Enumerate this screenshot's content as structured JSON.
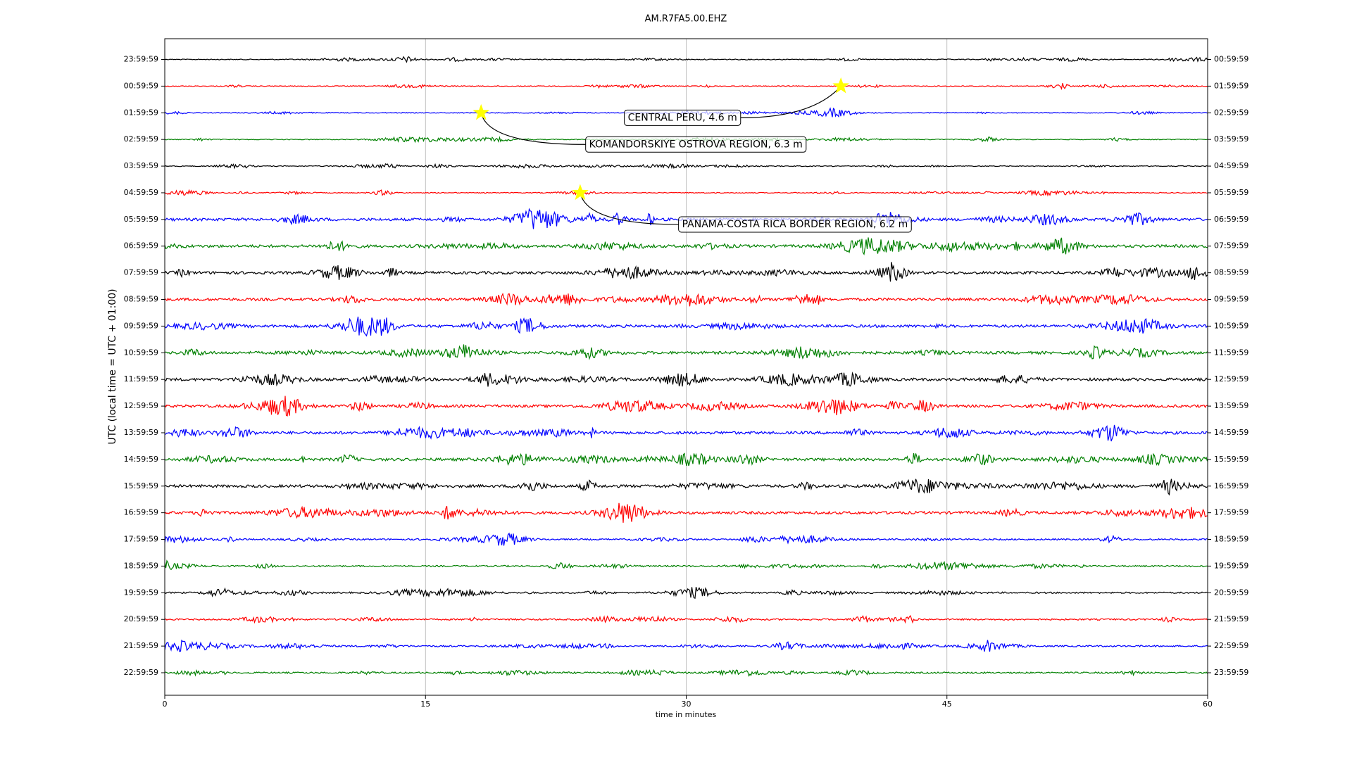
{
  "chart_data": {
    "type": "dayplot",
    "title": "AM.R7FA5.00.EHZ",
    "xlabel": "time in minutes",
    "ylabel": "UTC (local time = UTC + 01:00)",
    "xlim": [
      0,
      60
    ],
    "xticks": [
      0,
      15,
      30,
      45,
      60
    ],
    "grid": true,
    "traces": [
      {
        "label": "23:59:59",
        "right_label": "00:59:59",
        "color": "#000000"
      },
      {
        "label": "00:59:59",
        "right_label": "01:59:59",
        "color": "#ff0000",
        "events": [
          {
            "label": "CENTRAL PERU, 4.6 m",
            "minute": 38.9
          }
        ]
      },
      {
        "label": "01:59:59",
        "right_label": "02:59:59",
        "color": "#0000ff",
        "events": [
          {
            "label": "KOMANDORSKIYE OSTROVA REGION, 6.3 m",
            "minute": 18.2
          }
        ]
      },
      {
        "label": "02:59:59",
        "right_label": "03:59:59",
        "color": "#008000"
      },
      {
        "label": "03:59:59",
        "right_label": "04:59:59",
        "color": "#000000"
      },
      {
        "label": "04:59:59",
        "right_label": "05:59:59",
        "color": "#ff0000",
        "events": [
          {
            "label": "PANAMA-COSTA RICA BORDER REGION, 6.2 m",
            "minute": 23.9
          }
        ]
      },
      {
        "label": "05:59:59",
        "right_label": "06:59:59",
        "color": "#0000ff"
      },
      {
        "label": "06:59:59",
        "right_label": "07:59:59",
        "color": "#008000"
      },
      {
        "label": "07:59:59",
        "right_label": "08:59:59",
        "color": "#000000"
      },
      {
        "label": "08:59:59",
        "right_label": "09:59:59",
        "color": "#ff0000"
      },
      {
        "label": "09:59:59",
        "right_label": "10:59:59",
        "color": "#0000ff"
      },
      {
        "label": "10:59:59",
        "right_label": "11:59:59",
        "color": "#008000"
      },
      {
        "label": "11:59:59",
        "right_label": "12:59:59",
        "color": "#000000"
      },
      {
        "label": "12:59:59",
        "right_label": "13:59:59",
        "color": "#ff0000"
      },
      {
        "label": "13:59:59",
        "right_label": "14:59:59",
        "color": "#0000ff"
      },
      {
        "label": "14:59:59",
        "right_label": "15:59:59",
        "color": "#008000"
      },
      {
        "label": "15:59:59",
        "right_label": "16:59:59",
        "color": "#000000"
      },
      {
        "label": "16:59:59",
        "right_label": "17:59:59",
        "color": "#ff0000"
      },
      {
        "label": "17:59:59",
        "right_label": "18:59:59",
        "color": "#0000ff"
      },
      {
        "label": "18:59:59",
        "right_label": "19:59:59",
        "color": "#008000"
      },
      {
        "label": "19:59:59",
        "right_label": "20:59:59",
        "color": "#000000"
      },
      {
        "label": "20:59:59",
        "right_label": "21:59:59",
        "color": "#ff0000"
      },
      {
        "label": "21:59:59",
        "right_label": "22:59:59",
        "color": "#0000ff"
      },
      {
        "label": "22:59:59",
        "right_label": "23:59:59",
        "color": "#008000"
      }
    ]
  }
}
